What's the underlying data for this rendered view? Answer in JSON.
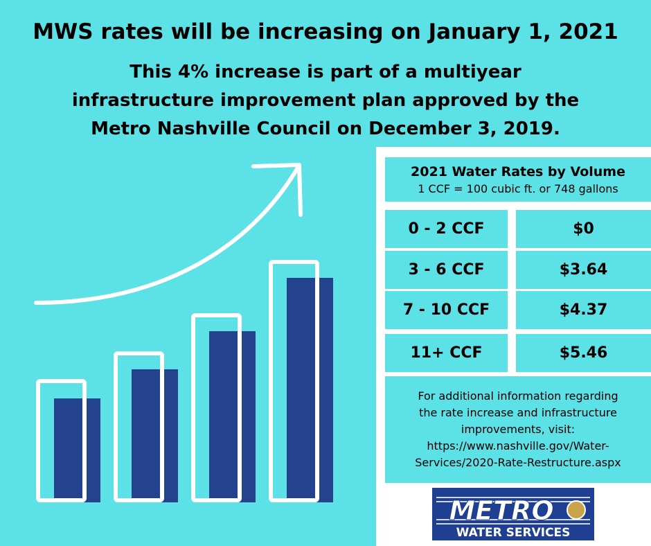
{
  "header": {
    "title": "MWS rates will be increasing on January 1, 2021",
    "subtitle_lines": [
      "This 4% increase is part of a multiyear",
      "infrastructure improvement plan approved by the",
      "Metro Nashville Council on December 3, 2019."
    ]
  },
  "table": {
    "title": "2021 Water Rates by Volume",
    "subtitle": "1 CCF = 100 cubic ft. or 748 gallons",
    "rows": [
      [
        "0 - 2 CCF",
        "$0"
      ],
      [
        "3 - 6 CCF",
        "$3.64"
      ],
      [
        "7 - 10 CCF",
        "$4.37"
      ],
      [
        "11+ CCF",
        "$5.46"
      ]
    ]
  },
  "info": {
    "lines": [
      "For additional information regarding",
      "the rate increase and infrastructure",
      "improvements, visit:",
      "https://www.nashville.gov/Water-",
      "Services/2020-Rate-Restructure.aspx"
    ]
  },
  "logo": {
    "name": "METRO",
    "tagline": "WATER SERVICES"
  }
}
